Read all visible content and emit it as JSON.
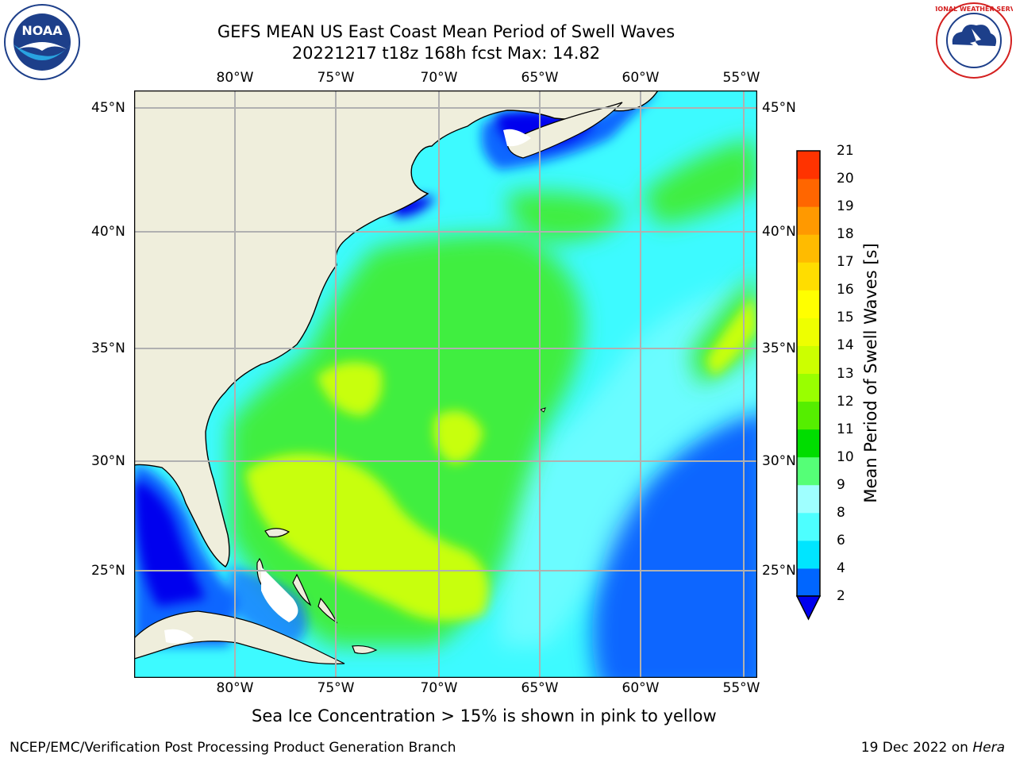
{
  "title_line1": "GEFS MEAN US East Coast Mean Period of Swell Waves",
  "title_line2": "20221217 t18z 168h fcst   Max: 14.82",
  "logos": {
    "left": {
      "icon": "noaa-logo",
      "text": "NOAA"
    },
    "right": {
      "icon": "nws-logo",
      "text": "NATIONAL WEATHER SERVICE"
    }
  },
  "lon_labels": [
    "80°W",
    "75°W",
    "70°W",
    "65°W",
    "60°W",
    "55°W"
  ],
  "lat_labels": [
    "45°N",
    "40°N",
    "35°N",
    "30°N",
    "25°N"
  ],
  "colorbar": {
    "label": "Mean Period of Swell Waves [s]",
    "ticks": [
      "2",
      "4",
      "6",
      "8",
      "9",
      "10",
      "11",
      "12",
      "13",
      "14",
      "15",
      "16",
      "17",
      "18",
      "19",
      "20",
      "21"
    ],
    "colors": [
      "#0066ff",
      "#00e5ff",
      "#4dffff",
      "#9fffff",
      "#55ff77",
      "#00dd00",
      "#55ee00",
      "#99ff00",
      "#ccff00",
      "#eeff00",
      "#ffff00",
      "#ffdd00",
      "#ffbb00",
      "#ff9900",
      "#ff6600",
      "#ff3300"
    ],
    "under_color": "#0000ee"
  },
  "map_colors": {
    "land": "#efeedc",
    "grid": "#b0b0b0",
    "coast": "#000000"
  },
  "footer_note": "Sea Ice Concentration > 15% is shown in pink to yellow",
  "footer_left": "NCEP/EMC/Verification Post Processing Product Generation Branch",
  "footer_right_date": "19 Dec 2022 on",
  "footer_right_host": "Hera"
}
